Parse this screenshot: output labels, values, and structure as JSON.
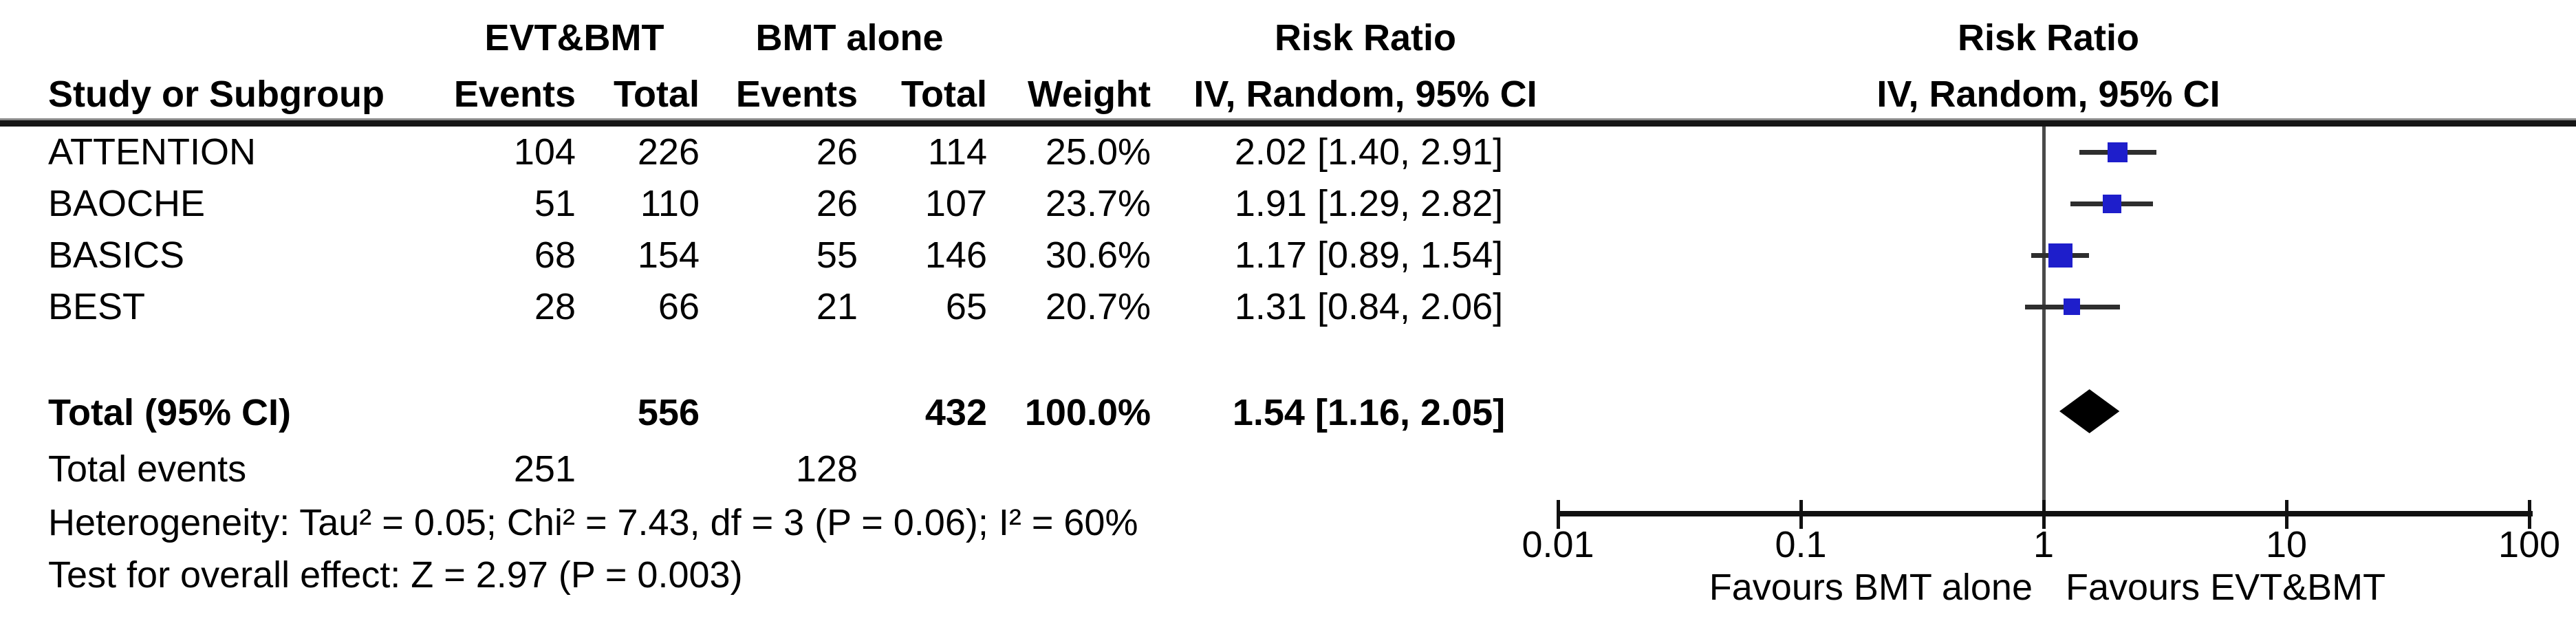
{
  "header": {
    "group_experimental": "EVT&BMT",
    "group_control": "BMT alone",
    "col_study": "Study or Subgroup",
    "col_events": "Events",
    "col_total": "Total",
    "col_weight": "Weight",
    "effect_col_title": "Risk Ratio",
    "effect_col_subtitle": "IV, Random, 95% CI",
    "plot_title": "Risk Ratio",
    "plot_subtitle": "IV, Random, 95% CI"
  },
  "chart_data": {
    "type": "forest",
    "effect_measure": "Risk Ratio",
    "method": "IV, Random, 95% CI",
    "x_scale": "log10",
    "xlim": [
      0.01,
      100
    ],
    "axis_ticks": [
      "0.01",
      "0.1",
      "1",
      "10",
      "100"
    ],
    "axis_tick_values": [
      0.01,
      0.1,
      1,
      10,
      100
    ],
    "studies": [
      {
        "name": "ATTENTION",
        "events_evt_bmt": "104",
        "total_evt_bmt": "226",
        "events_bmt_alone": "26",
        "total_bmt_alone": "114",
        "weight": "25.0%",
        "weight_pct": 25.0,
        "rr": 2.02,
        "ci_low": 1.4,
        "ci_high": 2.91,
        "effect_label": "2.02 [1.40, 2.91]"
      },
      {
        "name": "BAOCHE",
        "events_evt_bmt": "51",
        "total_evt_bmt": "110",
        "events_bmt_alone": "26",
        "total_bmt_alone": "107",
        "weight": "23.7%",
        "weight_pct": 23.7,
        "rr": 1.91,
        "ci_low": 1.29,
        "ci_high": 2.82,
        "effect_label": "1.91 [1.29, 2.82]"
      },
      {
        "name": "BASICS",
        "events_evt_bmt": "68",
        "total_evt_bmt": "154",
        "events_bmt_alone": "55",
        "total_bmt_alone": "146",
        "weight": "30.6%",
        "weight_pct": 30.6,
        "rr": 1.17,
        "ci_low": 0.89,
        "ci_high": 1.54,
        "effect_label": "1.17 [0.89, 1.54]"
      },
      {
        "name": "BEST",
        "events_evt_bmt": "28",
        "total_evt_bmt": "66",
        "events_bmt_alone": "21",
        "total_bmt_alone": "65",
        "weight": "20.7%",
        "weight_pct": 20.7,
        "rr": 1.31,
        "ci_low": 0.84,
        "ci_high": 2.06,
        "effect_label": "1.31 [0.84, 2.06]"
      }
    ],
    "total": {
      "label": "Total (95% CI)",
      "total_evt_bmt": "556",
      "total_bmt_alone": "432",
      "weight": "100.0%",
      "rr": 1.54,
      "ci_low": 1.16,
      "ci_high": 2.05,
      "effect_label": "1.54 [1.16, 2.05]"
    },
    "total_events": {
      "label": "Total events",
      "evt_bmt": "251",
      "bmt_alone": "128"
    },
    "heterogeneity": "Heterogeneity: Tau² = 0.05; Chi² = 7.43, df = 3 (P = 0.06); I² = 60%",
    "overall_effect": "Test for overall effect: Z = 2.97 (P = 0.003)",
    "favours_left": "Favours BMT alone",
    "favours_right": "Favours EVT&BMT",
    "colors": {
      "square": "#1E1ECB",
      "diamond": "#000000",
      "ci_line": "#2E2E2E",
      "axis": "#111111",
      "center_line": "#4A4A4A"
    }
  }
}
